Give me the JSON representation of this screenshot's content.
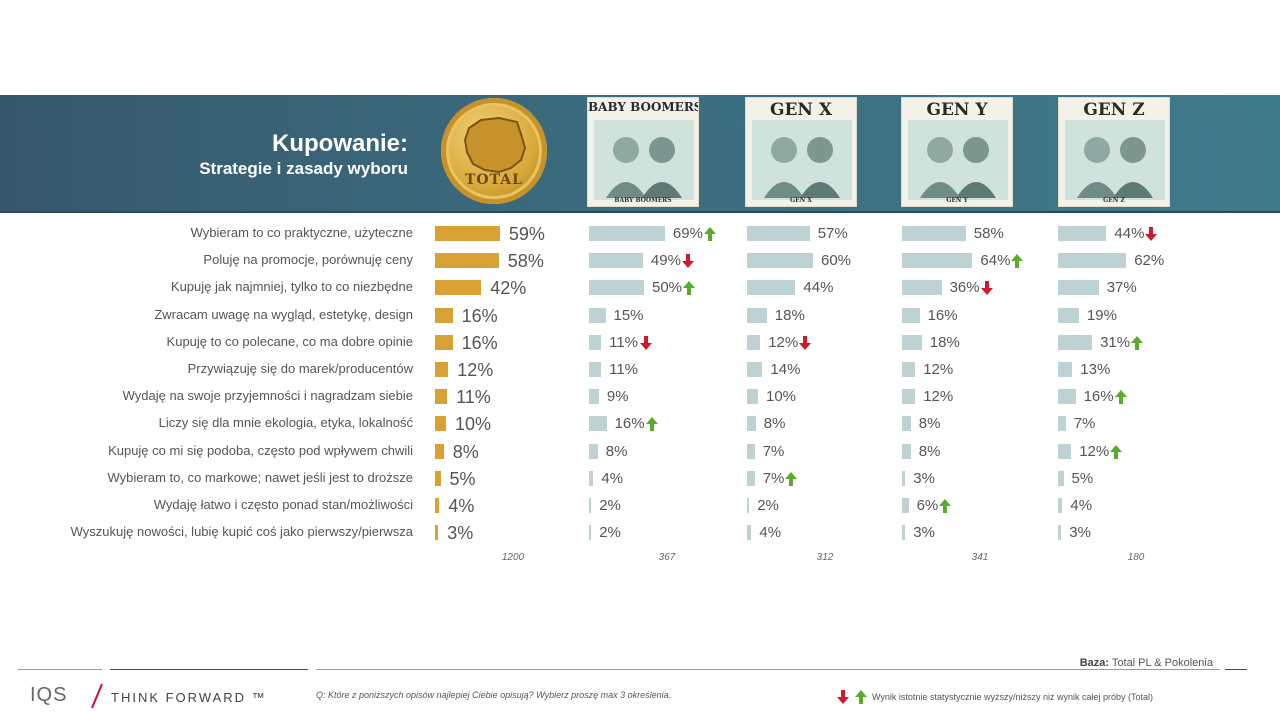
{
  "header": {
    "title": "Kupowanie:",
    "subtitle": "Strategie i zasady wyboru"
  },
  "coin_label": "TOTAL",
  "cards": [
    {
      "title": "BABY BOOMERS",
      "caption": "BABY BOOMERS"
    },
    {
      "title": "GEN X",
      "caption": "GEN X"
    },
    {
      "title": "GEN Y",
      "caption": "GEN Y"
    },
    {
      "title": "GEN Z",
      "caption": "GEN Z"
    }
  ],
  "chart_data": {
    "type": "bar",
    "categories": [
      "Wybieram to co praktyczne, użyteczne",
      "Poluję na promocje, porównuję ceny",
      "Kupuję jak najmniej, tylko to co niezbędne",
      "Zwracam uwagę na wygląd, estetykę, design",
      "Kupuję to co polecane, co ma dobre opinie",
      "Przywiązuję się do marek/producentów",
      "Wydaję na swoje przyjemności i nagradzam siebie",
      "Liczy się dla mnie ekologia, etyka, lokalność",
      "Kupuję co mi się podoba, często pod wpływem chwili",
      "Wybieram to, co markowe; nawet jeśli jest to droższe",
      "Wydaję łatwo i często ponad stan/możliwości",
      "Wyszukuję nowości, lubię kupić coś jako pierwszy/pierwsza"
    ],
    "unit": "%",
    "series": [
      {
        "name": "TOTAL",
        "base": "1200",
        "values": [
          59,
          58,
          42,
          16,
          16,
          12,
          11,
          10,
          8,
          5,
          4,
          3
        ],
        "flags": [
          "",
          "",
          "",
          "",
          "",
          "",
          "",
          "",
          "",
          "",
          "",
          ""
        ]
      },
      {
        "name": "BABY BOOMERS",
        "base": "367",
        "values": [
          69,
          49,
          50,
          15,
          11,
          11,
          9,
          16,
          8,
          4,
          2,
          2
        ],
        "flags": [
          "up",
          "down",
          "up",
          "",
          "down",
          "",
          "",
          "up",
          "",
          "",
          "",
          ""
        ]
      },
      {
        "name": "GEN X",
        "base": "312",
        "values": [
          57,
          60,
          44,
          18,
          12,
          14,
          10,
          8,
          7,
          7,
          2,
          4
        ],
        "flags": [
          "",
          "",
          "",
          "",
          "down",
          "",
          "",
          "",
          "",
          "up",
          "",
          ""
        ]
      },
      {
        "name": "GEN Y",
        "base": "341",
        "values": [
          58,
          64,
          36,
          16,
          18,
          12,
          12,
          8,
          8,
          3,
          6,
          3
        ],
        "flags": [
          "",
          "up",
          "down",
          "",
          "",
          "",
          "",
          "",
          "",
          "",
          "up",
          ""
        ]
      },
      {
        "name": "GEN Z",
        "base": "180",
        "values": [
          44,
          62,
          37,
          19,
          31,
          13,
          16,
          7,
          12,
          5,
          4,
          3
        ],
        "flags": [
          "down",
          "",
          "",
          "",
          "up",
          "",
          "up",
          "",
          "up",
          "",
          "",
          ""
        ]
      }
    ],
    "colors": {
      "total": "#d9a134",
      "generation": "#bed2d4",
      "up": "#5aab2b",
      "down": "#d0192c"
    }
  },
  "footer": {
    "base_label": "Baza:",
    "base_value": "Total PL & Pokolenia",
    "logo": "IQS",
    "tagline": "THINK FORWARD ™",
    "question": "Q: Które z poniższych opisów najlepiej Ciebie opisują? Wybierz proszę max 3 określenia.",
    "legend": "Wynik istotnie statystycznie wyższy/niższy niż wynik całej próby (Total)"
  }
}
